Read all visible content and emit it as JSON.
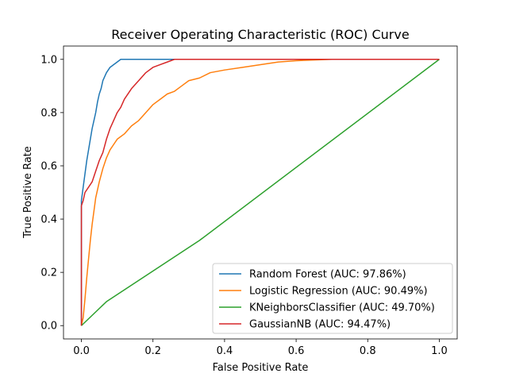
{
  "chart_data": {
    "type": "line",
    "title": "Receiver Operating Characteristic (ROC) Curve",
    "xlabel": "False Positive Rate",
    "ylabel": "True Positive Rate",
    "xlim": [
      -0.05,
      1.05
    ],
    "ylim": [
      -0.05,
      1.05
    ],
    "xticks": [
      0.0,
      0.2,
      0.4,
      0.6,
      0.8,
      1.0
    ],
    "yticks": [
      0.0,
      0.2,
      0.4,
      0.6,
      0.8,
      1.0
    ],
    "xtick_labels": [
      "0.0",
      "0.2",
      "0.4",
      "0.6",
      "0.8",
      "1.0"
    ],
    "ytick_labels": [
      "0.0",
      "0.2",
      "0.4",
      "0.6",
      "0.8",
      "1.0"
    ],
    "grid": false,
    "legend_position": "lower-right",
    "series": [
      {
        "name": "Random Forest (AUC: 97.86%)",
        "color": "#1f77b4",
        "x": [
          0,
          0,
          0.005,
          0.01,
          0.015,
          0.02,
          0.025,
          0.03,
          0.035,
          0.04,
          0.045,
          0.05,
          0.055,
          0.06,
          0.07,
          0.08,
          0.09,
          0.1,
          0.11,
          0.115,
          0.12,
          0.2,
          0.3,
          0.5,
          0.7,
          0.9,
          1.0
        ],
        "y": [
          0,
          0.47,
          0.52,
          0.57,
          0.62,
          0.66,
          0.7,
          0.74,
          0.77,
          0.8,
          0.84,
          0.87,
          0.89,
          0.92,
          0.95,
          0.97,
          0.98,
          0.99,
          1.0,
          1.0,
          1.0,
          1.0,
          1.0,
          1.0,
          1.0,
          1.0,
          1.0
        ]
      },
      {
        "name": "Logistic Regression (AUC: 90.49%)",
        "color": "#ff7f0e",
        "x": [
          0,
          0.005,
          0.01,
          0.015,
          0.02,
          0.025,
          0.03,
          0.035,
          0.04,
          0.05,
          0.06,
          0.07,
          0.08,
          0.09,
          0.1,
          0.12,
          0.14,
          0.16,
          0.18,
          0.2,
          0.22,
          0.24,
          0.26,
          0.28,
          0.3,
          0.33,
          0.36,
          0.4,
          0.45,
          0.5,
          0.55,
          0.6,
          0.7,
          0.8,
          0.9,
          1.0
        ],
        "y": [
          0,
          0.03,
          0.1,
          0.18,
          0.25,
          0.32,
          0.38,
          0.43,
          0.48,
          0.54,
          0.59,
          0.63,
          0.66,
          0.68,
          0.7,
          0.72,
          0.75,
          0.77,
          0.8,
          0.83,
          0.85,
          0.87,
          0.88,
          0.9,
          0.92,
          0.93,
          0.95,
          0.96,
          0.97,
          0.98,
          0.99,
          0.995,
          1.0,
          1.0,
          1.0,
          1.0
        ]
      },
      {
        "name": "KNeighborsClassifier (AUC: 49.70%)",
        "color": "#2ca02c",
        "x": [
          0,
          0.07,
          0.33,
          1.0
        ],
        "y": [
          0,
          0.09,
          0.32,
          1.0
        ]
      },
      {
        "name": "GaussianNB (AUC: 94.47%)",
        "color": "#d62728",
        "x": [
          0,
          0,
          0.005,
          0.01,
          0.02,
          0.03,
          0.04,
          0.05,
          0.06,
          0.07,
          0.08,
          0.09,
          0.1,
          0.11,
          0.12,
          0.14,
          0.16,
          0.18,
          0.2,
          0.22,
          0.24,
          0.26,
          0.3,
          0.4,
          0.6,
          0.8,
          1.0
        ],
        "y": [
          0,
          0.45,
          0.47,
          0.5,
          0.52,
          0.54,
          0.58,
          0.62,
          0.65,
          0.7,
          0.74,
          0.77,
          0.8,
          0.82,
          0.85,
          0.89,
          0.92,
          0.95,
          0.97,
          0.98,
          0.99,
          1.0,
          1.0,
          1.0,
          1.0,
          1.0,
          1.0
        ]
      }
    ]
  }
}
